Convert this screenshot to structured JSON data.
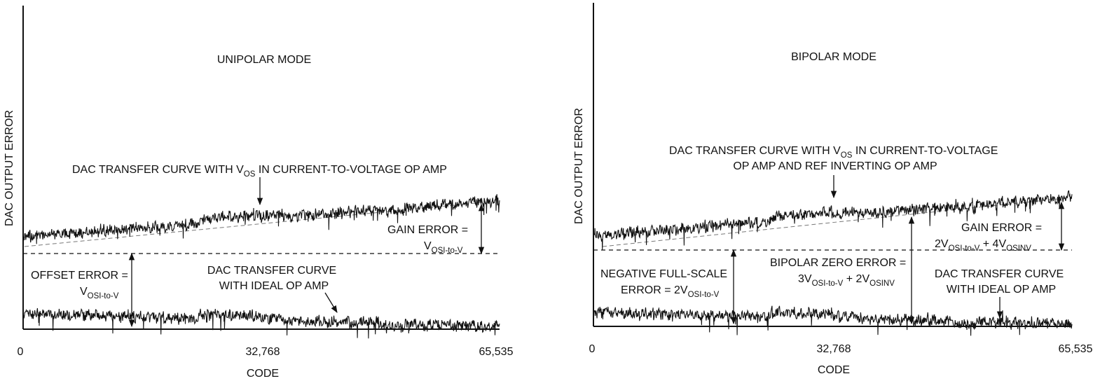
{
  "chart_data": [
    {
      "type": "line",
      "title": "UNIPOLAR MODE",
      "xlabel": "CODE",
      "ylabel": "DAC OUTPUT ERROR",
      "x_ticks": [
        "0",
        "32,768",
        "65,535"
      ],
      "xlim": [
        0,
        65535
      ],
      "series": [
        {
          "name": "DAC TRANSFER CURVE WITH VOS IN CURRENT-TO-VOLTAGE OP AMP",
          "x": [
            0,
            65535
          ],
          "y": [
            2.4,
            3.9
          ]
        },
        {
          "name": "DAC TRANSFER CURVE WITH IDEAL OP AMP",
          "x": [
            0,
            65535
          ],
          "y": [
            0.4,
            0.4
          ]
        }
      ],
      "annotations": {
        "curve_top": {
          "pre": "DAC TRANSFER CURVE WITH V",
          "sub": "OS",
          "post": " IN CURRENT-TO-VOLTAGE OP AMP"
        },
        "gain_error_line1": "GAIN ERROR =",
        "gain_error_line2": {
          "v": "V",
          "sub": "OSI-to-V"
        },
        "offset_error_line1": "OFFSET ERROR =",
        "offset_error_line2": {
          "v": "V",
          "sub": "OSI-to-V"
        },
        "ideal_line1": "DAC TRANSFER CURVE",
        "ideal_line2": "WITH IDEAL OP AMP"
      }
    },
    {
      "type": "line",
      "title": "BIPOLAR MODE",
      "xlabel": "CODE",
      "ylabel": "DAC OUTPUT ERROR",
      "x_ticks": [
        "0",
        "32,768",
        "65,535"
      ],
      "xlim": [
        0,
        65535
      ],
      "series": [
        {
          "name": "DAC TRANSFER CURVE WITH VOS IN CURRENT-TO-VOLTAGE OP AMP AND REF INVERTING OP AMP",
          "x": [
            0,
            65535
          ],
          "y": [
            2.5,
            4.0
          ]
        },
        {
          "name": "DAC TRANSFER CURVE WITH IDEAL OP AMP",
          "x": [
            0,
            65535
          ],
          "y": [
            0.4,
            0.4
          ]
        }
      ],
      "annotations": {
        "curve_top_line1": {
          "pre": "DAC TRANSFER CURVE WITH V",
          "sub": "OS",
          "post": " IN CURRENT-TO-VOLTAGE"
        },
        "curve_top_line2": "OP AMP AND REF INVERTING OP AMP",
        "gain_error_line1": "GAIN ERROR =",
        "gain_error_line2": {
          "a": "2V",
          "sub1": "OSI-to-V",
          "b": " + 4V",
          "sub2": "OSINV"
        },
        "neg_fs_line1": "NEGATIVE FULL-SCALE",
        "neg_fs_line2": {
          "a": "ERROR = 2V",
          "sub": "OSI-to-V"
        },
        "bz_line1": "BIPOLAR ZERO ERROR =",
        "bz_line2": {
          "a": "3V",
          "sub1": "OSI-to-V",
          "b": " + 2V",
          "sub2": "OSINV"
        },
        "ideal_line1": "DAC TRANSFER CURVE",
        "ideal_line2": "WITH IDEAL OP AMP"
      }
    }
  ]
}
